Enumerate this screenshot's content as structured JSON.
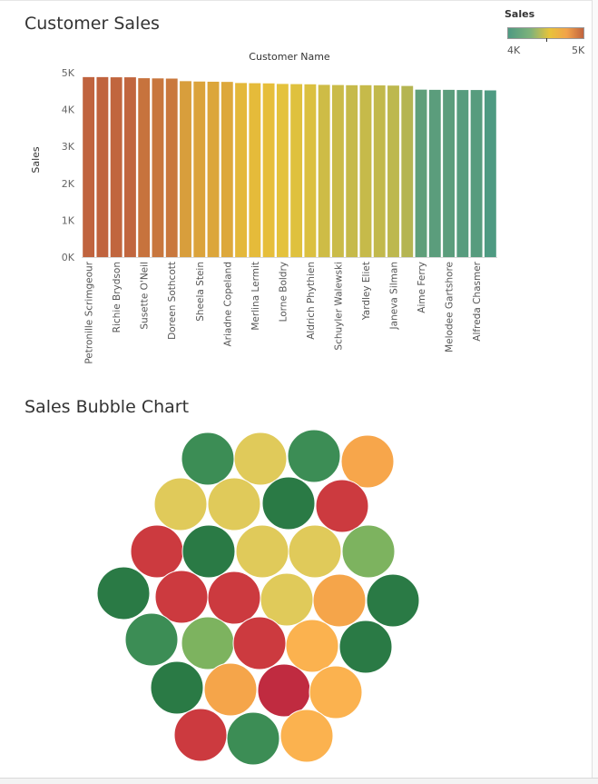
{
  "sheet1": {
    "title": "Customer Sales"
  },
  "sheet2": {
    "title": "Sales Bubble Chart"
  },
  "legend": {
    "title": "Sales",
    "min_label": "4K",
    "max_label": "5K"
  },
  "colors": {
    "low": "#4e9a82",
    "mid": "#e8c33a",
    "high": "#c0633e"
  },
  "chart_data": [
    {
      "type": "bar",
      "title": "Customer Sales",
      "header": "Customer Name",
      "ylabel": "Sales",
      "ylim": [
        0,
        5000
      ],
      "yticks": [
        0,
        1000,
        2000,
        3000,
        4000,
        5000
      ],
      "ytick_labels": [
        "0K",
        "1K",
        "2K",
        "3K",
        "4K",
        "5K"
      ],
      "categories": [
        "Petronille Scrimgeour",
        "",
        "Richie Brydson",
        "",
        "Susette O'Neil",
        "",
        "Doreen Sothcott",
        "",
        "Sheela Stein",
        "",
        "Ariadne Copeland",
        "",
        "Merlina Lermit",
        "",
        "Lorne Boldry",
        "",
        "Aldrich Phythien",
        "",
        "Schuyler Walewski",
        "",
        "Yardley Eliet",
        "",
        "Janeva Silman",
        "",
        "Aime Ferry",
        "",
        "Melodee Gartshore",
        "",
        "Alfreda Chasmer",
        ""
      ],
      "values": [
        4880,
        4880,
        4875,
        4875,
        4850,
        4845,
        4840,
        4770,
        4760,
        4755,
        4750,
        4720,
        4715,
        4710,
        4695,
        4690,
        4685,
        4670,
        4665,
        4660,
        4660,
        4655,
        4650,
        4640,
        4540,
        4535,
        4535,
        4530,
        4530,
        4520
      ],
      "legend": "top-right",
      "grid": false
    },
    {
      "type": "bubble",
      "title": "Sales Bubble Chart",
      "values": [
        4250,
        4700,
        4250,
        4980,
        4700,
        4700,
        4100,
        5050,
        5050,
        4100,
        4700,
        4700,
        4300,
        4100,
        5050,
        5050,
        4700,
        4900,
        4100,
        4200,
        4300,
        5050,
        4950,
        4100,
        4100,
        4900,
        5100,
        4950,
        5050,
        4200,
        4950
      ]
    }
  ]
}
